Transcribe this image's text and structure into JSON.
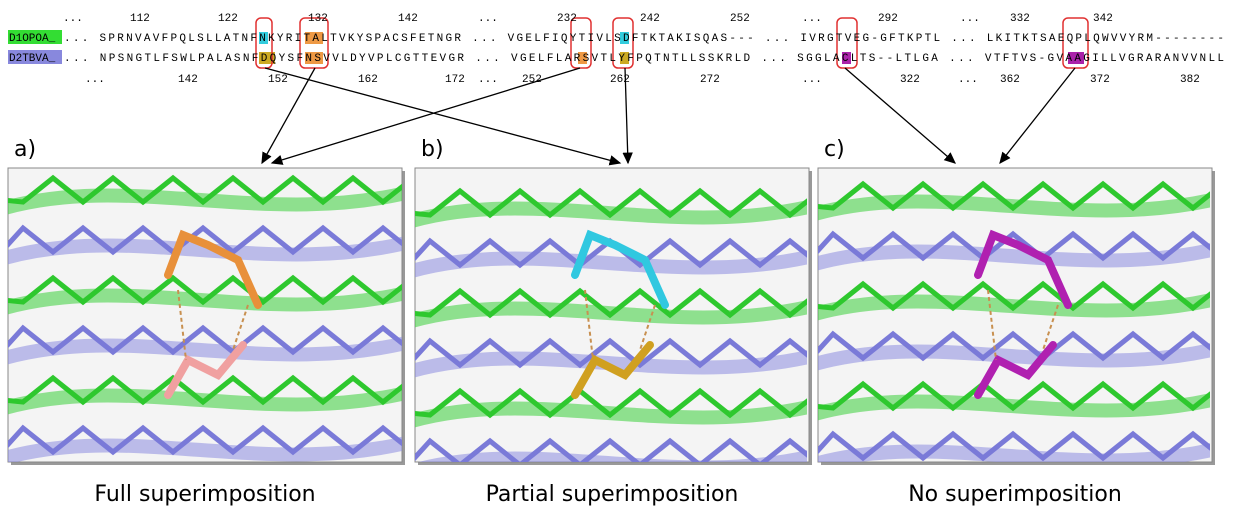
{
  "alignment": {
    "ruler_top": [
      "...",
      "112",
      "122",
      "132",
      "142",
      "...",
      "232",
      "242",
      "252",
      "...",
      "292",
      "...",
      "332",
      "342"
    ],
    "rows": [
      {
        "label": "D1OPOA_",
        "sequence": "... SPRNVAVFPQLSLLATNFNKYRITALTVKYSPACSFETNGR ... VGELFIQYTIVLSDFTKTAKISQAS--- ... IVRGTVEG-GFTKPTL ... LKITKTSAEQPLQWVVYRM--------"
      },
      {
        "label": "D2TBVA_",
        "sequence": "... NPSNGTLFSWLPALASNFDQYSFNSVVLDYVPLCGTTEVGR ... VGELFLARSVTLYFPQTNTLLSSKRLD ... SGGLACLTS--LTLGA ... VTFTVS-GVAAGILLVGRARANVVNLL"
      }
    ],
    "ruler_bottom": [
      "...",
      "142",
      "152",
      "162",
      "172",
      "...",
      "252",
      "262",
      "272",
      "...",
      "322",
      "...",
      "362",
      "372",
      "382"
    ]
  },
  "panels": [
    {
      "label": "a)",
      "caption": "Full superimposition"
    },
    {
      "label": "b)",
      "caption": "Partial superimposition"
    },
    {
      "label": "c)",
      "caption": "No superimposition"
    }
  ]
}
